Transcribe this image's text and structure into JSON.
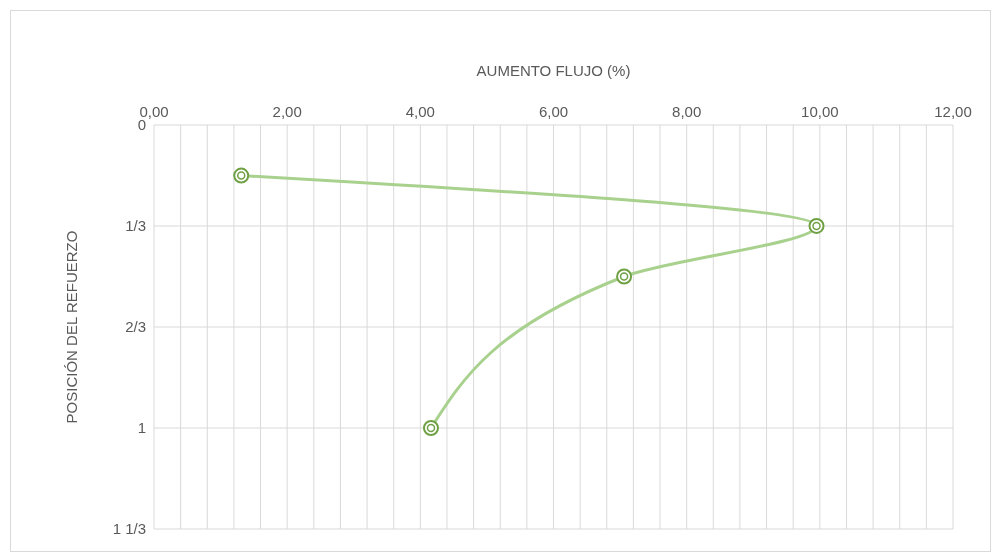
{
  "chart_data": {
    "type": "line",
    "xlabel": "AUMENTO FLUJO (%)",
    "ylabel": "POSICIÓN DEL REFUERZO",
    "x": [
      1.31,
      9.95,
      7.06,
      4.16
    ],
    "series": [
      {
        "color": "#a9d18e",
        "values": [
          0.167,
          0.333,
          0.5,
          1.0
        ]
      }
    ],
    "xlim": [
      0,
      12
    ],
    "xticks": [
      {
        "value": 0,
        "label": "0,00"
      },
      {
        "value": 0.4,
        "label": null
      },
      {
        "value": 0.8,
        "label": null
      },
      {
        "value": 1.2,
        "label": null
      },
      {
        "value": 1.6,
        "label": null
      },
      {
        "value": 2,
        "label": "2,00"
      },
      {
        "value": 2.4,
        "label": null
      },
      {
        "value": 2.8,
        "label": null
      },
      {
        "value": 3.2,
        "label": null
      },
      {
        "value": 3.6,
        "label": null
      },
      {
        "value": 4,
        "label": "4,00"
      },
      {
        "value": 4.4,
        "label": null
      },
      {
        "value": 4.8,
        "label": null
      },
      {
        "value": 5.2,
        "label": null
      },
      {
        "value": 5.6,
        "label": null
      },
      {
        "value": 6,
        "label": "6,00"
      },
      {
        "value": 6.4,
        "label": null
      },
      {
        "value": 6.8,
        "label": null
      },
      {
        "value": 7.2,
        "label": null
      },
      {
        "value": 7.6,
        "label": null
      },
      {
        "value": 8,
        "label": "8,00"
      },
      {
        "value": 8.4,
        "label": null
      },
      {
        "value": 8.8,
        "label": null
      },
      {
        "value": 9.2,
        "label": null
      },
      {
        "value": 9.6,
        "label": null
      },
      {
        "value": 10,
        "label": "10,00"
      },
      {
        "value": 10.4,
        "label": null
      },
      {
        "value": 10.8,
        "label": null
      },
      {
        "value": 11.2,
        "label": null
      },
      {
        "value": 11.6,
        "label": null
      },
      {
        "value": 12,
        "label": "12,00"
      }
    ],
    "ylim": [
      1.3333,
      0
    ],
    "yticks": [
      {
        "value": 0,
        "label": "0"
      },
      {
        "value": 0.3333,
        "label": "1/3"
      },
      {
        "value": 0.6667,
        "label": "2/3"
      },
      {
        "value": 1,
        "label": "1"
      },
      {
        "value": 1.3333,
        "label": "1 1/3"
      }
    ],
    "grid": true,
    "marker": "circle",
    "line_style": "solid"
  }
}
